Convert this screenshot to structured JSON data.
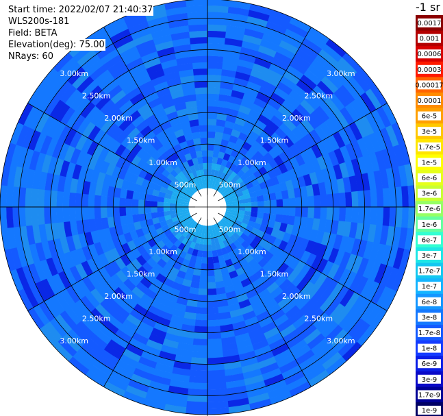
{
  "header": {
    "start_time": "Start time: 2022/02/07 21:40:37",
    "instrument": "WLS200s-181",
    "field": "Field: BETA",
    "elevation": "Elevation(deg): 75.00",
    "nrays": "NRays: 60"
  },
  "colorbar": {
    "unit_label": "-1 sr",
    "labels": [
      "0.0017",
      "0.001",
      "0.0006",
      "0.0003",
      "0.00017",
      "0.0001",
      "6e-5",
      "3e-5",
      "1.7e-5",
      "1e-5",
      "6e-6",
      "3e-6",
      "1.7e-6",
      "1e-6",
      "6e-7",
      "3e-7",
      "1.7e-7",
      "1e-7",
      "6e-8",
      "3e-8",
      "1.7e-8",
      "1e-8",
      "6e-9",
      "3e-9",
      "1.7e-9",
      "1e-9"
    ],
    "colors": [
      "#8b0000",
      "#b30000",
      "#d80000",
      "#ff1a00",
      "#ff6400",
      "#ff8c00",
      "#ffa000",
      "#ffc800",
      "#ffe600",
      "#ffff00",
      "#e6ff1a",
      "#c8ff32",
      "#96ff64",
      "#64ffa0",
      "#32ffd2",
      "#1ee6e6",
      "#14c8f0",
      "#14b4ff",
      "#1496ff",
      "#1478ff",
      "#145aff",
      "#143cff",
      "#0a1ee6",
      "#0a0ac8",
      "#000096",
      "#000064"
    ]
  },
  "chart_data": {
    "type": "heatmap",
    "projection": "polar PPI",
    "field": "BETA",
    "elevation_deg": 75.0,
    "n_rays": 60,
    "range_rings_m": [
      500,
      1000,
      1500,
      2000,
      2500,
      3000
    ],
    "ring_labels": [
      "500m",
      "1.00km",
      "1.50km",
      "2.00km",
      "2.50km",
      "3.00km"
    ],
    "value_range": [
      1e-09,
      0.0017
    ],
    "dominant_values": {
      "near_range_<=500m": 1.7e-07,
      "beyond_500m": "1e-8 to 6e-8"
    },
    "colors": {
      "near": "#1eaaf0",
      "mid": "#1478ff",
      "far": "#145aff",
      "dark": "#0a28e6",
      "light": "#1e8cf0"
    }
  }
}
